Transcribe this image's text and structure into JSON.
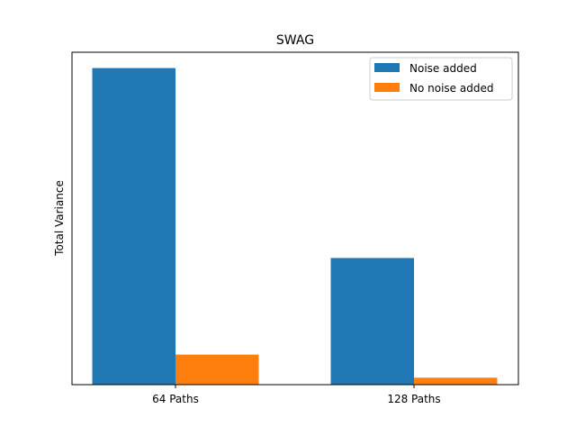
{
  "chart_data": {
    "type": "bar",
    "title": "SWAG",
    "xlabel": "",
    "ylabel": "Total Variance",
    "categories": [
      "64 Paths",
      "128 Paths"
    ],
    "series": [
      {
        "name": "Noise added",
        "color": "#1f77b4",
        "values": [
          1.0,
          0.4
        ]
      },
      {
        "name": "No noise added",
        "color": "#ff7f0e",
        "values": [
          0.095,
          0.022
        ]
      }
    ],
    "ylim": [
      0,
      1.05
    ],
    "y_ticks_shown": false,
    "grid": false,
    "legend_position": "top-right"
  }
}
